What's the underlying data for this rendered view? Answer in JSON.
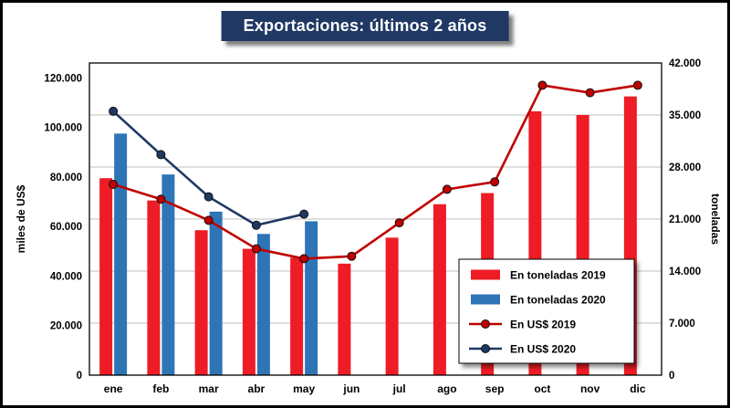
{
  "colors": {
    "title_bg": "#1F3864",
    "title_text": "#FFFFFF",
    "bar_2019": "#EE1C25",
    "bar_2020": "#2E75B6",
    "line_2019": "#C00000",
    "line_2020": "#1F3864",
    "gridline": "#BFBFBF",
    "plot_border": "#000000",
    "marker_edge": "#111111"
  },
  "chart_data": {
    "type": "combo",
    "title": "Exportaciones: últimos 2 años",
    "categories": [
      "ene",
      "feb",
      "mar",
      "abr",
      "may",
      "jun",
      "jul",
      "ago",
      "sep",
      "oct",
      "nov",
      "dic"
    ],
    "left_axis": {
      "label": "miles de US$",
      "min": 0,
      "max": 126000,
      "ticks": [
        0,
        20000,
        40000,
        60000,
        80000,
        100000,
        120000
      ],
      "tick_labels": [
        "0",
        "20.000",
        "40.000",
        "60.000",
        "80.000",
        "100.000",
        "120.000"
      ]
    },
    "right_axis": {
      "label": "toneladas",
      "min": 0,
      "max": 42000,
      "ticks": [
        0,
        7000,
        14000,
        21000,
        28000,
        35000,
        42000
      ],
      "tick_labels": [
        "0",
        "7.000",
        "14.000",
        "21.000",
        "28.000",
        "35.000",
        "42.000"
      ]
    },
    "grid": "horizontal",
    "legend_position": "inside-lower-right",
    "series": [
      {
        "name": "En toneladas 2019",
        "type": "bar",
        "axis": "right",
        "color": "#EE1C25",
        "values": [
          26500,
          23500,
          19500,
          17000,
          15800,
          15000,
          18500,
          23000,
          24500,
          35500,
          35000,
          37500
        ]
      },
      {
        "name": "En toneladas 2020",
        "type": "bar",
        "axis": "right",
        "color": "#2E75B6",
        "values": [
          32500,
          27000,
          22000,
          19000,
          20700,
          null,
          null,
          null,
          null,
          null,
          null,
          null
        ]
      },
      {
        "name": "En US$ 2019",
        "type": "line",
        "axis": "left",
        "color": "#C00000",
        "values": [
          77000,
          71000,
          62500,
          51000,
          47000,
          48000,
          61500,
          75000,
          78000,
          117000,
          114000,
          117000
        ]
      },
      {
        "name": "En US$ 2020",
        "type": "line",
        "axis": "left",
        "color": "#1F3864",
        "values": [
          106500,
          89000,
          72000,
          60500,
          65000,
          null,
          null,
          null,
          null,
          null,
          null,
          null
        ]
      }
    ],
    "legend": [
      "En toneladas 2019",
      "En toneladas 2020",
      "En US$ 2019",
      "En US$ 2020"
    ]
  }
}
